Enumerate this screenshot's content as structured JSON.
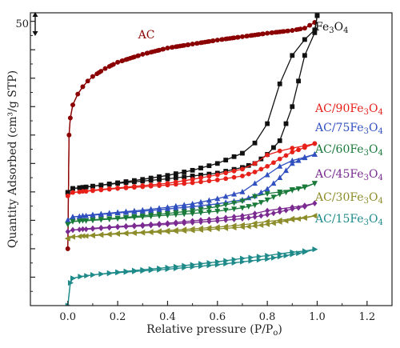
{
  "chart_data": {
    "type": "line",
    "title": "",
    "xlabel": "Relative pressure (P/P₀)",
    "ylabel": "Quantity Adsorbed (cm³/g STP)",
    "xlim": [
      -0.15,
      1.3
    ],
    "xticks": [
      "0.0",
      "0.2",
      "0.4",
      "0.6",
      "0.8",
      "1.0",
      "1.2"
    ],
    "y_axis_note": "y axis is stacked (curves offset vertically); only the top tick is numbered",
    "ylim": [
      0,
      51.5
    ],
    "yticks_labeled": [
      {
        "value": 50,
        "label": "50"
      }
    ],
    "scale_bar_label": "50",
    "grid": false,
    "series": [
      {
        "name": "AC",
        "color": "#8b0000",
        "marker": "circle",
        "label_position": "above-curve",
        "x": [
          0.0,
          0.005,
          0.01,
          0.02,
          0.04,
          0.06,
          0.08,
          0.1,
          0.15,
          0.2,
          0.3,
          0.4,
          0.5,
          0.6,
          0.7,
          0.8,
          0.9,
          0.95,
          0.99
        ],
        "adsorption": [
          10.0,
          30.0,
          33.0,
          35.3,
          37.2,
          38.5,
          39.5,
          40.3,
          41.7,
          42.8,
          44.2,
          45.3,
          46.0,
          46.7,
          47.3,
          47.9,
          48.4,
          48.8,
          49.8
        ],
        "desorption": [
          10.0,
          30.0,
          33.0,
          35.3,
          37.2,
          38.5,
          39.5,
          40.3,
          41.7,
          42.8,
          44.2,
          45.3,
          46.0,
          46.7,
          47.3,
          47.9,
          48.4,
          48.8,
          49.8
        ]
      },
      {
        "name": "Fe3O4",
        "color": "#111111",
        "marker": "square",
        "label_position": "end",
        "x": [
          0.0,
          0.02,
          0.1,
          0.2,
          0.3,
          0.4,
          0.5,
          0.6,
          0.7,
          0.75,
          0.8,
          0.85,
          0.9,
          0.95,
          0.99,
          1.0
        ],
        "adsorption": [
          19.9,
          20.6,
          21.0,
          21.5,
          21.9,
          22.3,
          22.8,
          23.3,
          24.3,
          25.0,
          26.6,
          29.0,
          35.0,
          44.0,
          48.0,
          51.0
        ],
        "desorption": [
          19.9,
          20.6,
          21.0,
          21.6,
          22.2,
          22.9,
          23.8,
          25.0,
          26.8,
          28.6,
          32.0,
          39.0,
          44.0,
          46.8,
          48.5,
          51.0
        ]
      },
      {
        "name": "AC/90Fe3O4",
        "color": "#e8201a",
        "marker": "circle",
        "label_position": "end",
        "x": [
          0.0,
          0.02,
          0.1,
          0.2,
          0.3,
          0.4,
          0.5,
          0.6,
          0.7,
          0.75,
          0.8,
          0.85,
          0.9,
          0.95,
          0.99
        ],
        "adsorption": [
          19.3,
          19.9,
          20.2,
          20.6,
          20.9,
          21.2,
          21.6,
          22.1,
          22.8,
          23.5,
          24.5,
          25.8,
          27.0,
          27.8,
          28.5
        ],
        "desorption": [
          19.3,
          19.9,
          20.3,
          20.7,
          21.1,
          21.5,
          22.2,
          23.0,
          24.0,
          25.0,
          26.5,
          27.2,
          27.7,
          28.1,
          28.5
        ]
      },
      {
        "name": "AC/75Fe3O4",
        "color": "#3050c0",
        "marker": "triangle-up",
        "label_position": "end",
        "x": [
          0.0,
          0.02,
          0.1,
          0.2,
          0.3,
          0.4,
          0.5,
          0.6,
          0.7,
          0.75,
          0.8,
          0.85,
          0.9,
          0.95,
          0.99
        ],
        "adsorption": [
          15.0,
          15.6,
          15.9,
          16.3,
          16.6,
          17.0,
          17.4,
          17.9,
          18.6,
          19.3,
          20.5,
          22.5,
          25.0,
          26.0,
          26.6
        ],
        "desorption": [
          15.0,
          15.6,
          16.0,
          16.4,
          16.8,
          17.3,
          17.9,
          18.8,
          20.0,
          21.5,
          23.0,
          24.5,
          25.5,
          26.1,
          26.6
        ]
      },
      {
        "name": "AC/60Fe3O4",
        "color": "#1a7a3a",
        "marker": "triangle-down",
        "label_position": "end",
        "x": [
          0.0,
          0.02,
          0.1,
          0.2,
          0.3,
          0.4,
          0.5,
          0.6,
          0.7,
          0.75,
          0.8,
          0.85,
          0.9,
          0.95,
          0.99
        ],
        "adsorption": [
          14.3,
          14.8,
          15.0,
          15.3,
          15.6,
          15.9,
          16.2,
          16.6,
          17.2,
          17.7,
          18.6,
          19.6,
          20.3,
          20.8,
          21.5
        ],
        "desorption": [
          14.3,
          14.8,
          15.1,
          15.4,
          15.8,
          16.2,
          16.7,
          17.4,
          18.4,
          19.2,
          19.7,
          20.0,
          20.4,
          20.9,
          21.5
        ]
      },
      {
        "name": "AC/45Fe3O4",
        "color": "#7a2a90",
        "marker": "diamond",
        "label_position": "end",
        "x": [
          0.0,
          0.02,
          0.1,
          0.2,
          0.3,
          0.4,
          0.5,
          0.6,
          0.7,
          0.75,
          0.8,
          0.85,
          0.9,
          0.95,
          0.99
        ],
        "adsorption": [
          13.0,
          13.3,
          13.5,
          13.8,
          14.0,
          14.3,
          14.6,
          14.9,
          15.3,
          15.6,
          16.0,
          16.5,
          17.0,
          17.4,
          18.0
        ],
        "desorption": [
          13.0,
          13.3,
          13.6,
          13.9,
          14.2,
          14.5,
          14.9,
          15.3,
          15.8,
          16.2,
          16.7,
          17.0,
          17.3,
          17.6,
          18.0
        ]
      },
      {
        "name": "AC/30Fe3O4",
        "color": "#8c8c2a",
        "marker": "triangle-left",
        "label_position": "end",
        "x": [
          0.0,
          0.02,
          0.1,
          0.2,
          0.3,
          0.4,
          0.5,
          0.6,
          0.7,
          0.75,
          0.8,
          0.85,
          0.9,
          0.95,
          0.99
        ],
        "adsorption": [
          11.8,
          12.1,
          12.3,
          12.6,
          12.8,
          13.0,
          13.2,
          13.5,
          13.8,
          14.0,
          14.3,
          14.7,
          15.1,
          15.4,
          15.8
        ],
        "desorption": [
          11.8,
          12.1,
          12.4,
          12.7,
          12.9,
          13.2,
          13.5,
          13.8,
          14.2,
          14.5,
          14.8,
          15.0,
          15.3,
          15.5,
          15.8
        ]
      },
      {
        "name": "AC/15Fe3O4",
        "color": "#1e8a8a",
        "marker": "triangle-right",
        "label_position": "end",
        "x": [
          0.0,
          0.01,
          0.02,
          0.05,
          0.1,
          0.2,
          0.3,
          0.4,
          0.5,
          0.6,
          0.7,
          0.8,
          0.85,
          0.9,
          0.95,
          0.99
        ],
        "adsorption": [
          0.0,
          4.0,
          4.8,
          5.1,
          5.4,
          5.8,
          6.1,
          6.4,
          6.8,
          7.2,
          7.7,
          8.2,
          8.6,
          9.0,
          9.4,
          9.9
        ],
        "desorption": [
          0.0,
          4.0,
          4.8,
          5.1,
          5.4,
          5.9,
          6.3,
          6.7,
          7.2,
          7.7,
          8.3,
          8.8,
          9.1,
          9.4,
          9.6,
          9.9
        ]
      }
    ]
  }
}
